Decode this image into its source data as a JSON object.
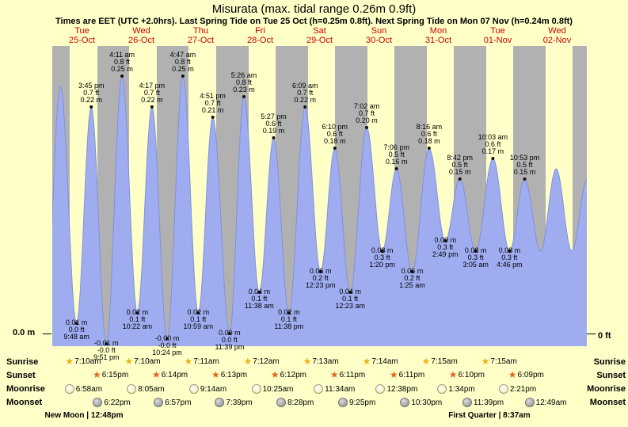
{
  "title": "Misurata (max. tidal range 0.26m 0.9ft)",
  "subtitle": "Times are EET (UTC +2.0hrs). Last Spring Tide on Tue 25 Oct (h=0.25m 0.8ft). Next Spring Tide on Mon 07 Nov (h=0.24m 0.8ft)",
  "axis": {
    "left": "0.0 m",
    "right": "0 ft"
  },
  "row_labels": {
    "sunrise": "Sunrise",
    "sunset": "Sunset",
    "moonrise": "Moonrise",
    "moonset": "Moonset"
  },
  "days": [
    {
      "name": "Tue",
      "date": "25-Oct"
    },
    {
      "name": "Wed",
      "date": "26-Oct"
    },
    {
      "name": "Thu",
      "date": "27-Oct"
    },
    {
      "name": "Fri",
      "date": "28-Oct"
    },
    {
      "name": "Sat",
      "date": "29-Oct"
    },
    {
      "name": "Sun",
      "date": "30-Oct"
    },
    {
      "name": "Mon",
      "date": "31-Oct"
    },
    {
      "name": "Tue",
      "date": "01-Nov"
    },
    {
      "name": "Wed",
      "date": "02-Nov"
    }
  ],
  "sun": {
    "sunrise": [
      {
        "day": 0,
        "time": "7:10am",
        "hour": 7.17
      },
      {
        "day": 1,
        "time": "7:10am",
        "hour": 7.17
      },
      {
        "day": 2,
        "time": "7:11am",
        "hour": 7.18
      },
      {
        "day": 3,
        "time": "7:12am",
        "hour": 7.2
      },
      {
        "day": 4,
        "time": "7:13am",
        "hour": 7.22
      },
      {
        "day": 5,
        "time": "7:14am",
        "hour": 7.23
      },
      {
        "day": 6,
        "time": "7:15am",
        "hour": 7.25
      },
      {
        "day": 7,
        "time": "7:15am",
        "hour": 7.25
      }
    ],
    "sunset": [
      {
        "day": 0,
        "time": "6:15pm",
        "hour": 18.25
      },
      {
        "day": 1,
        "time": "6:14pm",
        "hour": 18.23
      },
      {
        "day": 2,
        "time": "6:13pm",
        "hour": 18.22
      },
      {
        "day": 3,
        "time": "6:12pm",
        "hour": 18.2
      },
      {
        "day": 4,
        "time": "6:11pm",
        "hour": 18.18
      },
      {
        "day": 5,
        "time": "6:11pm",
        "hour": 18.18
      },
      {
        "day": 6,
        "time": "6:10pm",
        "hour": 18.17
      },
      {
        "day": 7,
        "time": "6:09pm",
        "hour": 18.15
      }
    ]
  },
  "moon": {
    "moonrise": [
      {
        "day": 0,
        "time": "6:58am",
        "hour": 6.97
      },
      {
        "day": 1,
        "time": "8:05am",
        "hour": 8.08
      },
      {
        "day": 2,
        "time": "9:14am",
        "hour": 9.23
      },
      {
        "day": 3,
        "time": "10:25am",
        "hour": 10.42
      },
      {
        "day": 4,
        "time": "11:34am",
        "hour": 11.57
      },
      {
        "day": 5,
        "time": "12:38pm",
        "hour": 12.63
      },
      {
        "day": 6,
        "time": "1:34pm",
        "hour": 13.57
      },
      {
        "day": 7,
        "time": "2:21pm",
        "hour": 14.35
      }
    ],
    "moonset": [
      {
        "day": 0,
        "time": "6:22pm",
        "hour": 18.37
      },
      {
        "day": 1,
        "time": "6:57pm",
        "hour": 18.95
      },
      {
        "day": 2,
        "time": "7:39pm",
        "hour": 19.65
      },
      {
        "day": 3,
        "time": "8:28pm",
        "hour": 20.47
      },
      {
        "day": 4,
        "time": "9:25pm",
        "hour": 21.42
      },
      {
        "day": 5,
        "time": "10:30pm",
        "hour": 22.5
      },
      {
        "day": 6,
        "time": "11:39pm",
        "hour": 23.65
      },
      {
        "day": 8,
        "time": "12:49am",
        "hour": 0.82
      }
    ]
  },
  "moon_phases": [
    {
      "label": "New Moon",
      "time": "12:48pm",
      "day": 0,
      "hour": 12.8
    },
    {
      "label": "First Quarter",
      "time": "8:37am",
      "day": 7,
      "hour": 8.62
    }
  ],
  "chart_data": {
    "type": "area",
    "x_start": "Tue 25-Oct 00:00 EET",
    "x_range_days": 9,
    "y_zero_labels": {
      "left": "0.0 m",
      "right": "0 ft"
    },
    "y_range_m": [
      -0.03,
      0.29
    ],
    "tide_events": [
      {
        "type": "low",
        "day": 0,
        "hour": 9.8,
        "time": "9:48 am",
        "m": 0.01,
        "ft": 0.0,
        "m_text": "0.01 m",
        "ft_text": "0.0 ft"
      },
      {
        "type": "high",
        "day": 0,
        "hour": 15.75,
        "time": "3:45 pm",
        "m": 0.22,
        "ft": 0.7,
        "m_text": "0.22 m",
        "ft_text": "0.7 ft"
      },
      {
        "type": "low",
        "day": 0,
        "hour": 21.85,
        "time": "9:51 pm",
        "m": -0.01,
        "ft": 0.0,
        "m_text": "-0.01 m",
        "ft_text": "-0.0 ft"
      },
      {
        "type": "high",
        "day": 1,
        "hour": 4.18,
        "time": "4:11 am",
        "m": 0.25,
        "ft": 0.8,
        "m_text": "0.25 m",
        "ft_text": "0.8 ft"
      },
      {
        "type": "low",
        "day": 1,
        "hour": 10.37,
        "time": "10:22 am",
        "m": 0.02,
        "ft": 0.1,
        "m_text": "0.02 m",
        "ft_text": "0.1 ft"
      },
      {
        "type": "high",
        "day": 1,
        "hour": 16.28,
        "time": "4:17 pm",
        "m": 0.22,
        "ft": 0.7,
        "m_text": "0.22 m",
        "ft_text": "0.7 ft"
      },
      {
        "type": "low",
        "day": 1,
        "hour": 22.4,
        "time": "10:24 pm",
        "m": -0.005,
        "ft": 0.0,
        "m_text": "-0.00 m",
        "ft_text": "-0.0 ft"
      },
      {
        "type": "high",
        "day": 2,
        "hour": 4.78,
        "time": "4:47 am",
        "m": 0.25,
        "ft": 0.8,
        "m_text": "0.25 m",
        "ft_text": "0.8 ft"
      },
      {
        "type": "low",
        "day": 2,
        "hour": 10.98,
        "time": "10:59 am",
        "m": 0.02,
        "ft": 0.1,
        "m_text": "0.02 m",
        "ft_text": "0.1 ft"
      },
      {
        "type": "high",
        "day": 2,
        "hour": 16.85,
        "time": "4:51 pm",
        "m": 0.21,
        "ft": 0.7,
        "m_text": "0.21 m",
        "ft_text": "0.7 ft"
      },
      {
        "type": "low",
        "day": 2,
        "hour": 23.65,
        "time": "11:39 pm",
        "m": 0.0,
        "ft": 0.0,
        "m_text": "0.00 m",
        "ft_text": "0.0 ft"
      },
      {
        "type": "high",
        "day": 3,
        "hour": 5.43,
        "time": "5:26 am",
        "m": 0.23,
        "ft": 0.8,
        "m_text": "0.23 m",
        "ft_text": "0.8 ft"
      },
      {
        "type": "low",
        "day": 3,
        "hour": 11.63,
        "time": "11:38 am",
        "m": 0.04,
        "ft": 0.1,
        "m_text": "0.04 m",
        "ft_text": "0.1 ft"
      },
      {
        "type": "high",
        "day": 3,
        "hour": 17.45,
        "time": "5:27 pm",
        "m": 0.19,
        "ft": 0.6,
        "m_text": "0.19 m",
        "ft_text": "0.6 ft"
      },
      {
        "type": "low",
        "day": 3,
        "hour": 23.63,
        "time": "11:38 pm",
        "m": 0.02,
        "ft": 0.1,
        "m_text": "0.02 m",
        "ft_text": "0.1 ft"
      },
      {
        "type": "high",
        "day": 4,
        "hour": 6.15,
        "time": "6:09 am",
        "m": 0.22,
        "ft": 0.7,
        "m_text": "0.22 m",
        "ft_text": "0.7 ft"
      },
      {
        "type": "low",
        "day": 4,
        "hour": 12.38,
        "time": "12:23 pm",
        "m": 0.06,
        "ft": 0.2,
        "m_text": "0.06 m",
        "ft_text": "0.2 ft"
      },
      {
        "type": "high",
        "day": 4,
        "hour": 18.17,
        "time": "6:10 pm",
        "m": 0.18,
        "ft": 0.6,
        "m_text": "0.18 m",
        "ft_text": "0.6 ft"
      },
      {
        "type": "low",
        "day": 5,
        "hour": 0.38,
        "time": "12:23 am",
        "m": 0.04,
        "ft": 0.1,
        "m_text": "0.04 m",
        "ft_text": "0.1 ft"
      },
      {
        "type": "high",
        "day": 5,
        "hour": 7.03,
        "time": "7:02 am",
        "m": 0.2,
        "ft": 0.7,
        "m_text": "0.20 m",
        "ft_text": "0.7 ft"
      },
      {
        "type": "low",
        "day": 5,
        "hour": 13.33,
        "time": "1:20 pm",
        "m": 0.08,
        "ft": 0.3,
        "m_text": "0.08 m",
        "ft_text": "0.3 ft"
      },
      {
        "type": "high",
        "day": 5,
        "hour": 19.1,
        "time": "7:06 pm",
        "m": 0.16,
        "ft": 0.5,
        "m_text": "0.16 m",
        "ft_text": "0.5 ft"
      },
      {
        "type": "low",
        "day": 6,
        "hour": 1.42,
        "time": "1:25 am",
        "m": 0.06,
        "ft": 0.2,
        "m_text": "0.06 m",
        "ft_text": "0.2 ft"
      },
      {
        "type": "high",
        "day": 6,
        "hour": 8.27,
        "time": "8:16 am",
        "m": 0.18,
        "ft": 0.6,
        "m_text": "0.18 m",
        "ft_text": "0.6 ft"
      },
      {
        "type": "low",
        "day": 6,
        "hour": 14.82,
        "time": "2:49 pm",
        "m": 0.09,
        "ft": 0.3,
        "m_text": "0.09 m",
        "ft_text": "0.3 ft"
      },
      {
        "type": "high",
        "day": 6,
        "hour": 20.7,
        "time": "8:42 pm",
        "m": 0.15,
        "ft": 0.5,
        "m_text": "0.15 m",
        "ft_text": "0.5 ft"
      },
      {
        "type": "low",
        "day": 7,
        "hour": 3.08,
        "time": "3:05 am",
        "m": 0.08,
        "ft": 0.3,
        "m_text": "0.08 m",
        "ft_text": "0.3 ft"
      },
      {
        "type": "high",
        "day": 7,
        "hour": 10.05,
        "time": "10:03 am",
        "m": 0.17,
        "ft": 0.6,
        "m_text": "0.17 m",
        "ft_text": "0.6 ft"
      },
      {
        "type": "low",
        "day": 7,
        "hour": 16.77,
        "time": "4:46 pm",
        "m": 0.08,
        "ft": 0.3,
        "m_text": "0.08 m",
        "ft_text": "0.3 ft"
      },
      {
        "type": "high",
        "day": 7,
        "hour": 22.88,
        "time": "10:53 pm",
        "m": 0.15,
        "ft": 0.5,
        "m_text": "0.15 m",
        "ft_text": "0.5 ft"
      }
    ],
    "curve_anchors": [
      {
        "day": 0,
        "hour": -3.2,
        "m": -0.01
      },
      {
        "day": 0,
        "hour": 3.3,
        "m": 0.24
      },
      {
        "day": 8,
        "hour": 5.3,
        "m": 0.08
      },
      {
        "day": 8,
        "hour": 11.6,
        "m": 0.16
      },
      {
        "day": 8,
        "hour": 17.9,
        "m": 0.08
      },
      {
        "day": 9,
        "hour": 0.2,
        "m": 0.15
      }
    ]
  },
  "colors": {
    "page_bg": "#ffffc8",
    "night_band": "#b1b1b1",
    "day_band": "#ffffc8",
    "tide_fill": "#9fadf0",
    "tide_edge": "#8090dc",
    "day_label": "#cc0000",
    "sunrise_star": "#eab41c",
    "sunset_star": "#e2671b",
    "dot": "#111111"
  }
}
